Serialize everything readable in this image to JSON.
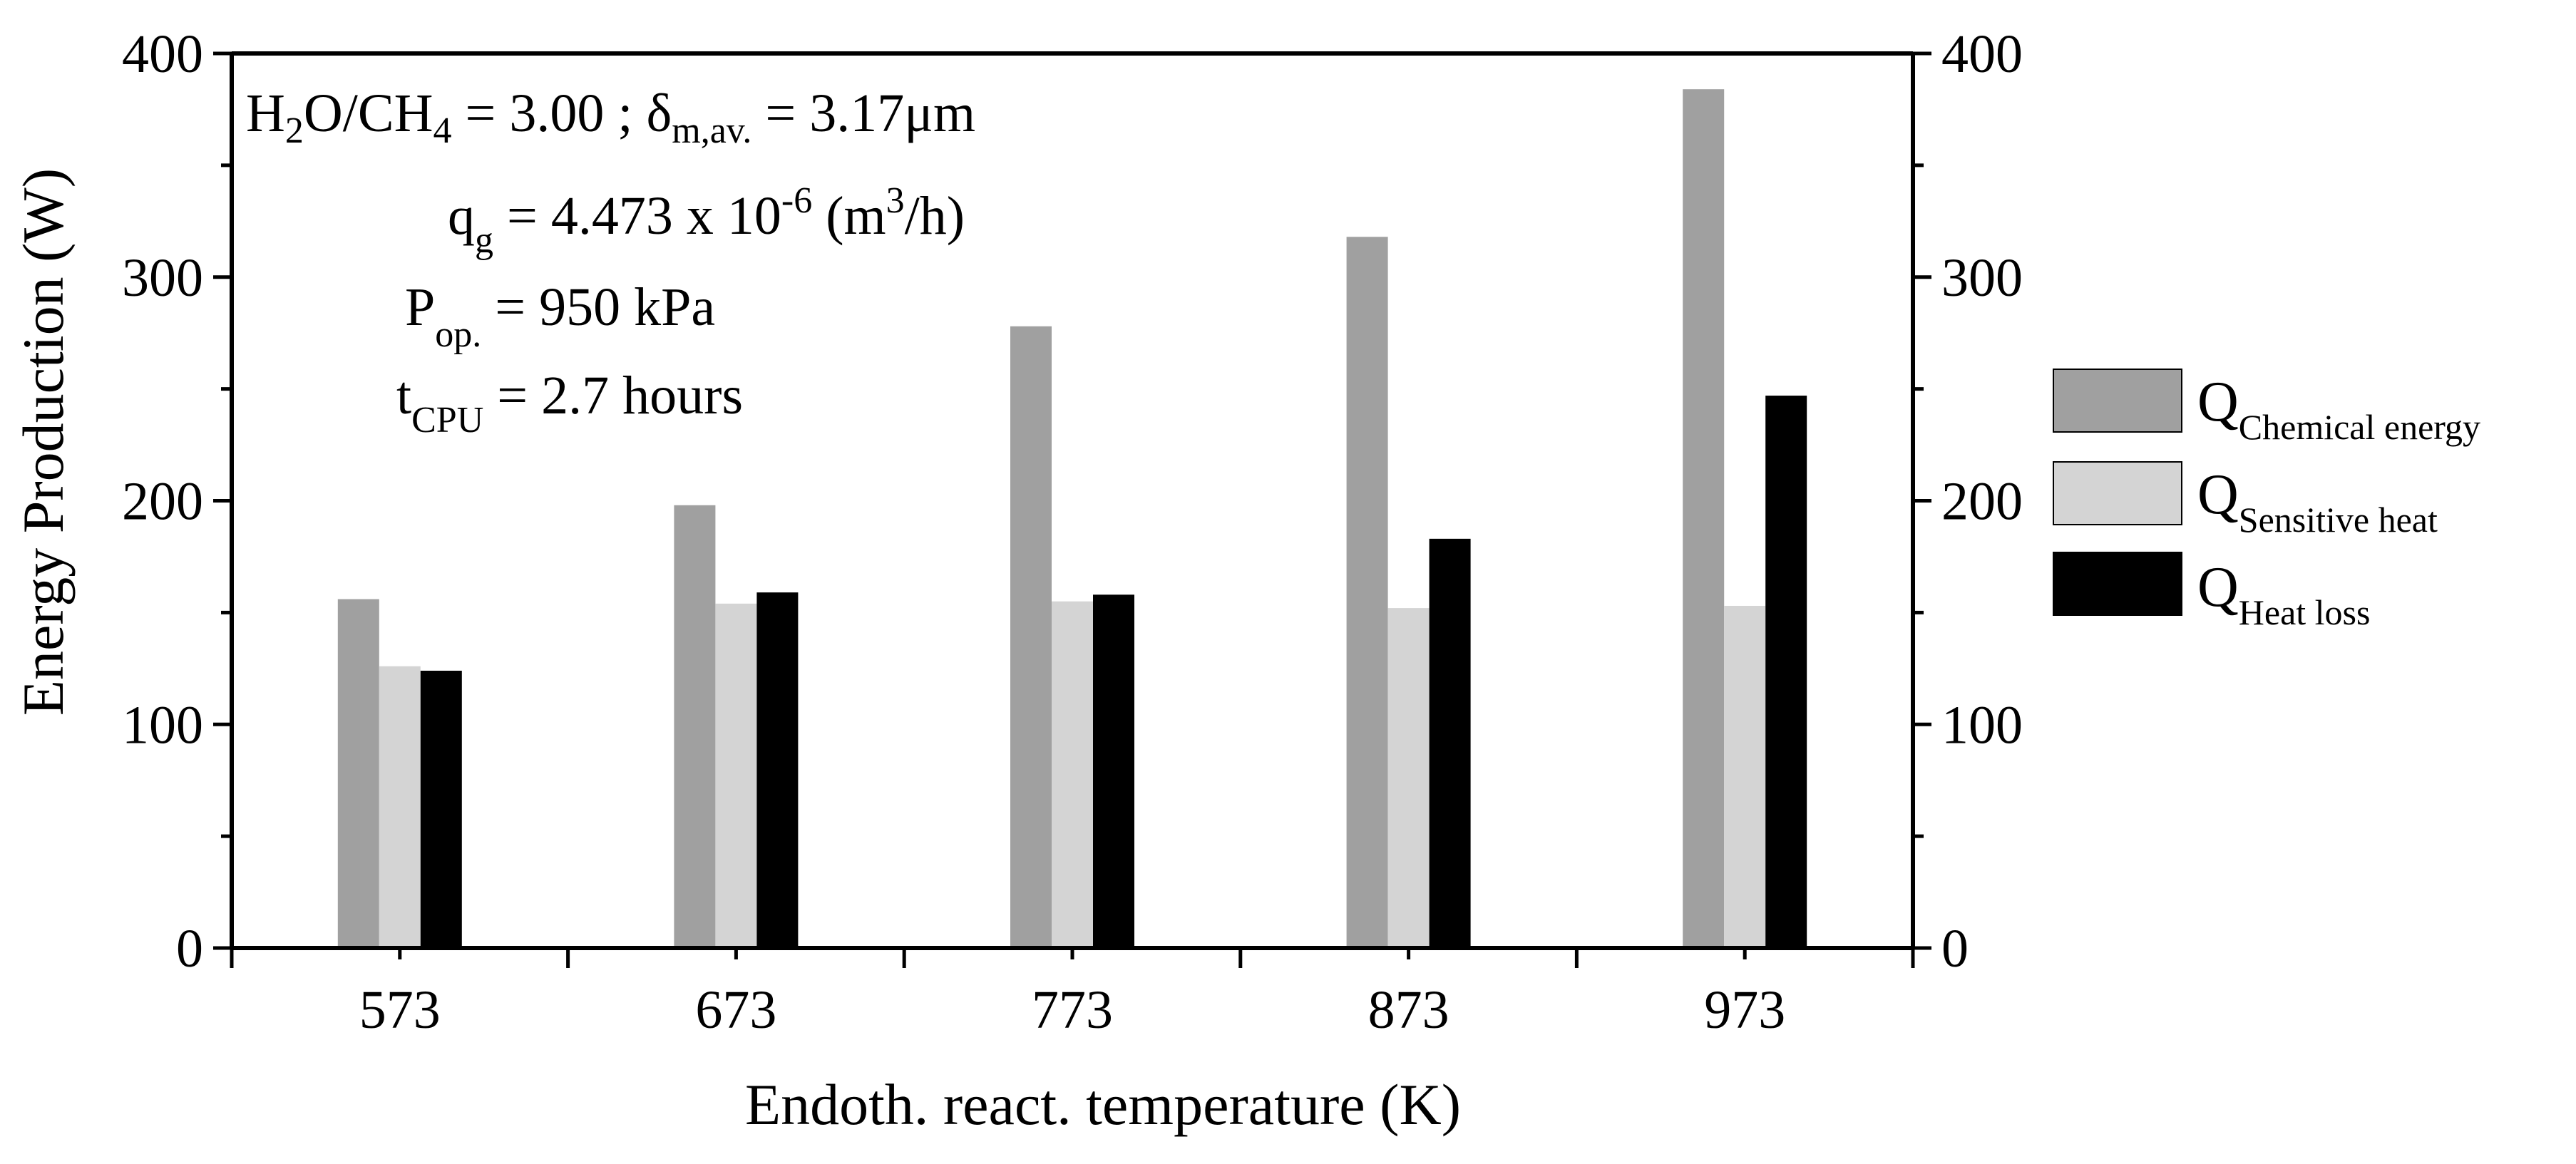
{
  "chart_data": {
    "type": "bar",
    "xlabel": "Endoth. react. temperature (K)",
    "ylabel": "Energy Production (W)",
    "ylim": [
      0,
      400
    ],
    "yticks": [
      0,
      100,
      200,
      300,
      400
    ],
    "y_minor_step": 50,
    "right_axis_mirror": true,
    "grid": false,
    "legend_position": "right",
    "categories": [
      "573",
      "673",
      "773",
      "873",
      "973"
    ],
    "series": [
      {
        "name": "Q",
        "sub": "Chemical energy",
        "color": "#a0a0a0",
        "values": [
          156,
          198,
          278,
          318,
          384
        ]
      },
      {
        "name": "Q",
        "sub": "Sensitive heat",
        "color": "#d4d4d4",
        "values": [
          126,
          154,
          155,
          152,
          153
        ]
      },
      {
        "name": "Q",
        "sub": "Heat loss",
        "color": "#000000",
        "values": [
          124,
          159,
          158,
          183,
          247
        ]
      }
    ],
    "annotations": {
      "line1": {
        "h": "H",
        "h_sub": "2",
        "o_ch": "O/CH",
        "ch_sub": "4",
        "eq": " = 3.00 ; δ",
        "delta_sub": "m,av.",
        "value": " = 3.17μm"
      },
      "line2": {
        "q": "q",
        "q_sub": "g",
        "eq": " = 4.473 x 10",
        "exp": "-6",
        "unit_open": " (m",
        "unit_exp": "3",
        "unit_close": "/h)"
      },
      "line3": {
        "p": "P",
        "p_sub": "op.",
        "value": " = 950 kPa"
      },
      "line4": {
        "t": "t",
        "t_sub": "CPU",
        "value": " = 2.7 hours"
      }
    }
  }
}
